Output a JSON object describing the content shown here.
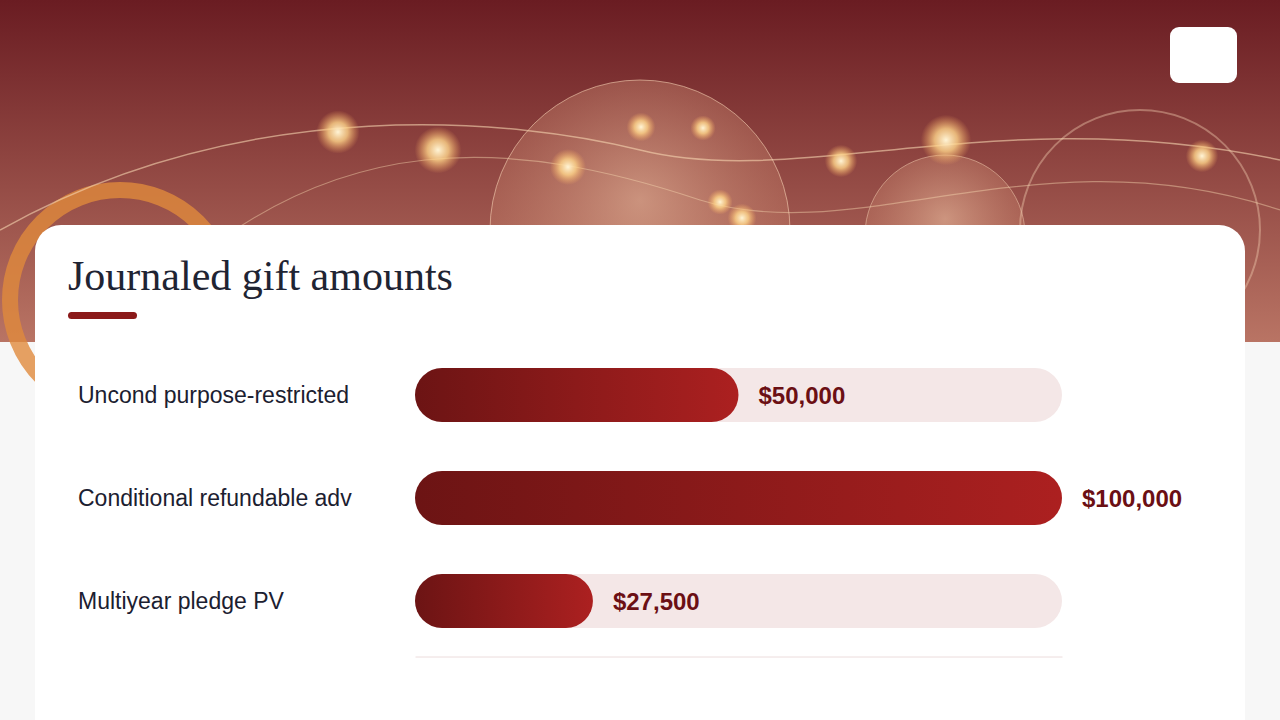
{
  "chart_data": {
    "type": "bar",
    "orientation": "horizontal",
    "title": "Journaled gift amounts",
    "categories": [
      "Uncond purpose-restricted",
      "Conditional refundable adv",
      "Multiyear pledge PV"
    ],
    "values": [
      50000,
      100000,
      27500
    ],
    "value_labels": [
      "$50,000",
      "$100,000",
      "$27,500"
    ],
    "data_labels": true,
    "color": "#8b1a1a",
    "xlim": [
      0,
      100000
    ],
    "tick_labels": false
  }
}
